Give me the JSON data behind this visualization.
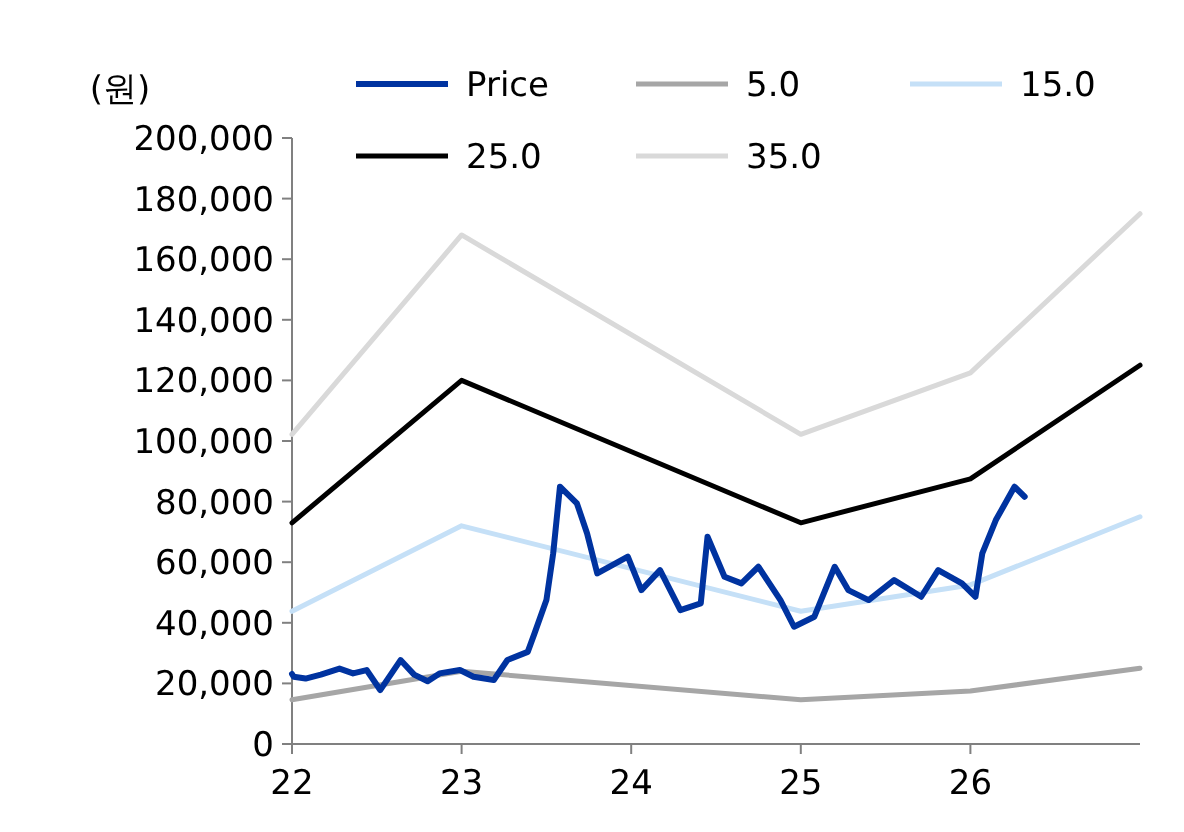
{
  "chart_data": {
    "type": "line",
    "ylabel": "(원)",
    "xlim": [
      22,
      27
    ],
    "xticks": [
      22,
      23,
      24,
      25,
      26
    ],
    "ylim": [
      0,
      200000
    ],
    "yticks": [
      0,
      {
        "value": 20000,
        "label": "20,000"
      },
      {
        "value": 40000,
        "label": "40,000"
      },
      {
        "value": 60000,
        "label": "60,000"
      },
      {
        "value": 80000,
        "label": "80,000"
      },
      {
        "value": 100000,
        "label": "100,000"
      },
      {
        "value": 120000,
        "label": "120,000"
      },
      {
        "value": 140000,
        "label": "140,000"
      },
      {
        "value": 160000,
        "label": "160,000"
      },
      {
        "value": 180000,
        "label": "180,000"
      },
      {
        "value": 200000,
        "label": "200,000"
      }
    ],
    "grid": false,
    "legend": "top",
    "line_style": "solid",
    "series": [
      {
        "name": "Price",
        "color": "#0033a0",
        "x": [
          22.0,
          22.01,
          22.08,
          22.17,
          22.28,
          22.36,
          22.44,
          22.52,
          22.64,
          22.72,
          22.8,
          22.87,
          22.99,
          23.07,
          23.19,
          23.27,
          23.39,
          23.43,
          23.5,
          23.54,
          23.58,
          23.62,
          23.68,
          23.74,
          23.8,
          23.98,
          24.06,
          24.17,
          24.29,
          24.41,
          24.45,
          24.55,
          24.65,
          24.75,
          24.88,
          24.96,
          25.08,
          25.2,
          25.28,
          25.4,
          25.55,
          25.71,
          25.81,
          25.95,
          26.03,
          26.07,
          26.15,
          26.26,
          26.32
        ],
        "values": [
          23100,
          22200,
          21600,
          22900,
          24900,
          23300,
          24400,
          17800,
          27700,
          22900,
          20700,
          23300,
          24400,
          22200,
          21100,
          27700,
          30400,
          36500,
          47500,
          62900,
          84900,
          82700,
          79400,
          69500,
          56300,
          61800,
          50800,
          57400,
          44200,
          46400,
          68400,
          55200,
          53000,
          58500,
          47500,
          38700,
          42000,
          58500,
          50800,
          47500,
          54100,
          48600,
          57400,
          53000,
          48600,
          62900,
          73900,
          84900,
          81600
        ]
      },
      {
        "name": "5.0",
        "color": "#a6a6a6",
        "x": [
          22,
          23,
          25,
          26,
          27
        ],
        "values": [
          14600,
          24000,
          14600,
          17500,
          25000
        ]
      },
      {
        "name": "15.0",
        "color": "#c5e0f7",
        "x": [
          22,
          23,
          25,
          26,
          27
        ],
        "values": [
          43800,
          72000,
          43800,
          52500,
          75000
        ]
      },
      {
        "name": "25.0",
        "color": "#000000",
        "x": [
          22,
          23,
          25,
          26,
          27
        ],
        "values": [
          73000,
          120000,
          73000,
          87500,
          125000
        ]
      },
      {
        "name": "35.0",
        "color": "#d9d9d9",
        "x": [
          22,
          23,
          25,
          26,
          27
        ],
        "values": [
          102200,
          168000,
          102200,
          122500,
          175000
        ]
      }
    ]
  }
}
